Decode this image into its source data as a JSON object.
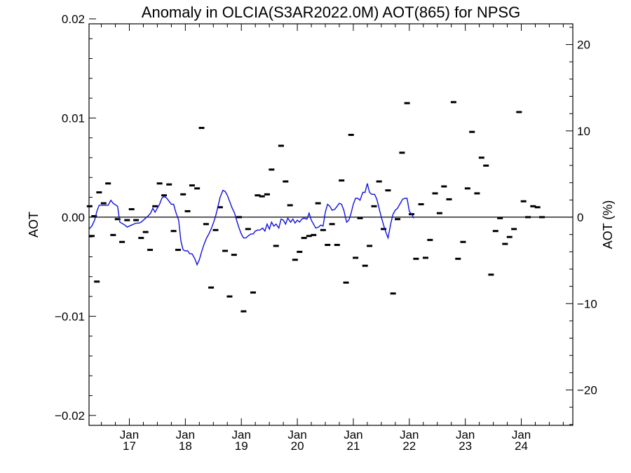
{
  "chart_data": {
    "type": "scatter",
    "title": "Anomaly in OLCIA(S3AR2022.0M) AOT(865) for NPSG",
    "ylabel": "AOT",
    "ylabel_right": "AOT (%)",
    "xlabel": "",
    "ylim": [
      -0.021,
      0.0195
    ],
    "ylim_right": [
      -24.1,
      22.4
    ],
    "xlim": [
      2016.28,
      2024.92
    ],
    "yticks": [
      {
        "value": 0.02,
        "label": "0.02"
      },
      {
        "value": 0.01,
        "label": "0.01"
      },
      {
        "value": 0.0,
        "label": "0.00"
      },
      {
        "value": -0.01,
        "label": "−0.01"
      },
      {
        "value": -0.02,
        "label": "−0.02"
      }
    ],
    "yticks_right": [
      {
        "value": 20,
        "label": "20"
      },
      {
        "value": 10,
        "label": "10"
      },
      {
        "value": 0,
        "label": "0"
      },
      {
        "value": -10,
        "label": "−10"
      },
      {
        "value": -20,
        "label": "−20"
      }
    ],
    "xticks": [
      {
        "value": 2017.0,
        "month": "Jan",
        "year": "17"
      },
      {
        "value": 2018.0,
        "month": "Jan",
        "year": "18"
      },
      {
        "value": 2019.0,
        "month": "Jan",
        "year": "19"
      },
      {
        "value": 2020.0,
        "month": "Jan",
        "year": "20"
      },
      {
        "value": 2021.0,
        "month": "Jan",
        "year": "21"
      },
      {
        "value": 2022.0,
        "month": "Jan",
        "year": "22"
      },
      {
        "value": 2023.0,
        "month": "Jan",
        "year": "23"
      },
      {
        "value": 2024.0,
        "month": "Jan",
        "year": "24"
      }
    ],
    "zero_line": 0,
    "grid": false,
    "series": [
      {
        "mark": "dash",
        "color": "#000000",
        "points": [
          [
            2016.29,
            0.0011
          ],
          [
            2016.33,
            -0.0019
          ],
          [
            2016.37,
            0.0001
          ],
          [
            2016.42,
            -0.0065
          ],
          [
            2016.46,
            0.0025
          ],
          [
            2016.54,
            0.0014
          ],
          [
            2016.62,
            0.0034
          ],
          [
            2016.71,
            -0.0018
          ],
          [
            2016.79,
            -0.0002
          ],
          [
            2016.87,
            -0.0025
          ],
          [
            2016.96,
            -0.0003
          ],
          [
            2017.04,
            0.0008
          ],
          [
            2017.12,
            -0.0003
          ],
          [
            2017.21,
            -0.0021
          ],
          [
            2017.29,
            -0.0015
          ],
          [
            2017.37,
            -0.0033
          ],
          [
            2017.46,
            0.0011
          ],
          [
            2017.54,
            0.0034
          ],
          [
            2017.62,
            0.0022
          ],
          [
            2017.71,
            0.0033
          ],
          [
            2017.79,
            -0.0014
          ],
          [
            2017.87,
            -0.0033
          ],
          [
            2017.96,
            0.0023
          ],
          [
            2018.04,
            0.0006
          ],
          [
            2018.12,
            0.0032
          ],
          [
            2018.21,
            0.0029
          ],
          [
            2018.29,
            0.009
          ],
          [
            2018.37,
            -0.0007
          ],
          [
            2018.46,
            -0.0071
          ],
          [
            2018.54,
            -0.0013
          ],
          [
            2018.62,
            0.001
          ],
          [
            2018.71,
            -0.0034
          ],
          [
            2018.79,
            -0.008
          ],
          [
            2018.87,
            -0.0038
          ],
          [
            2018.96,
            0.0
          ],
          [
            2019.04,
            -0.0095
          ],
          [
            2019.12,
            -0.0012
          ],
          [
            2019.21,
            -0.0076
          ],
          [
            2019.29,
            0.0022
          ],
          [
            2019.37,
            0.0021
          ],
          [
            2019.46,
            0.0023
          ],
          [
            2019.54,
            0.0048
          ],
          [
            2019.62,
            -0.0029
          ],
          [
            2019.71,
            0.0072
          ],
          [
            2019.79,
            0.0036
          ],
          [
            2019.87,
            0.0012
          ],
          [
            2019.96,
            -0.0043
          ],
          [
            2020.04,
            -0.0035
          ],
          [
            2020.12,
            -0.0021
          ],
          [
            2020.21,
            -0.0019
          ],
          [
            2020.29,
            -0.0018
          ],
          [
            2020.37,
            0.0014
          ],
          [
            2020.46,
            -0.0013
          ],
          [
            2020.54,
            -0.0028
          ],
          [
            2020.62,
            -0.0007
          ],
          [
            2020.71,
            -0.0028
          ],
          [
            2020.79,
            0.0037
          ],
          [
            2020.87,
            -0.0066
          ],
          [
            2020.96,
            0.0083
          ],
          [
            2021.04,
            -0.0041
          ],
          [
            2021.12,
            -0.0001
          ],
          [
            2021.21,
            -0.0049
          ],
          [
            2021.29,
            -0.0029
          ],
          [
            2021.37,
            0.0011
          ],
          [
            2021.46,
            0.0036
          ],
          [
            2021.54,
            -0.0012
          ],
          [
            2021.62,
            0.0027
          ],
          [
            2021.71,
            -0.0077
          ],
          [
            2021.79,
            -0.0002
          ],
          [
            2021.87,
            0.0065
          ],
          [
            2021.96,
            0.0115
          ],
          [
            2022.04,
            0.0003
          ],
          [
            2022.12,
            -0.0042
          ],
          [
            2022.21,
            0.0013
          ],
          [
            2022.29,
            -0.0041
          ],
          [
            2022.37,
            -0.0023
          ],
          [
            2022.46,
            0.0024
          ],
          [
            2022.54,
            0.0004
          ],
          [
            2022.62,
            0.0031
          ],
          [
            2022.71,
            0.0018
          ],
          [
            2022.79,
            0.0116
          ],
          [
            2022.87,
            -0.0042
          ],
          [
            2022.96,
            -0.0025
          ],
          [
            2023.04,
            0.0029
          ],
          [
            2023.12,
            0.0086
          ],
          [
            2023.21,
            0.0024
          ],
          [
            2023.29,
            0.006
          ],
          [
            2023.37,
            0.0052
          ],
          [
            2023.46,
            -0.0058
          ],
          [
            2023.54,
            -0.0014
          ],
          [
            2023.62,
            -0.0001
          ],
          [
            2023.71,
            -0.0027
          ],
          [
            2023.79,
            -0.002
          ],
          [
            2023.87,
            -0.0012
          ],
          [
            2023.96,
            0.0106
          ],
          [
            2024.04,
            0.0016
          ],
          [
            2024.12,
            0.0
          ],
          [
            2024.21,
            0.0011
          ],
          [
            2024.29,
            0.001
          ],
          [
            2024.37,
            0.0
          ]
        ]
      },
      {
        "mark": "line",
        "color": "#1010e0",
        "points": [
          [
            2016.28,
            -0.0012
          ],
          [
            2016.33,
            -0.0009
          ],
          [
            2016.38,
            -0.0003
          ],
          [
            2016.42,
            0.0006
          ],
          [
            2016.46,
            0.0012
          ],
          [
            2016.54,
            0.0012
          ],
          [
            2016.62,
            0.0012
          ],
          [
            2016.67,
            0.0017
          ],
          [
            2016.71,
            0.0014
          ],
          [
            2016.79,
            0.0011
          ],
          [
            2016.83,
            -0.0005
          ],
          [
            2016.92,
            -0.0008
          ],
          [
            2016.96,
            -0.001
          ],
          [
            2017.04,
            -0.0008
          ],
          [
            2017.12,
            -0.0006
          ],
          [
            2017.17,
            -0.0006
          ],
          [
            2017.21,
            -0.0005
          ],
          [
            2017.29,
            -0.0001
          ],
          [
            2017.33,
            0.0001
          ],
          [
            2017.38,
            0.0004
          ],
          [
            2017.42,
            0.0009
          ],
          [
            2017.46,
            0.0005
          ],
          [
            2017.5,
            0.0009
          ],
          [
            2017.54,
            0.0013
          ],
          [
            2017.58,
            0.0019
          ],
          [
            2017.62,
            0.0021
          ],
          [
            2017.67,
            0.0019
          ],
          [
            2017.71,
            0.0016
          ],
          [
            2017.75,
            0.0013
          ],
          [
            2017.79,
            0.0013
          ],
          [
            2017.83,
            0.0005
          ],
          [
            2017.88,
            -0.0003
          ],
          [
            2017.92,
            -0.0024
          ],
          [
            2017.96,
            -0.0033
          ],
          [
            2018.0,
            -0.0034
          ],
          [
            2018.04,
            -0.0034
          ],
          [
            2018.08,
            -0.0037
          ],
          [
            2018.12,
            -0.0037
          ],
          [
            2018.17,
            -0.0042
          ],
          [
            2018.21,
            -0.0048
          ],
          [
            2018.25,
            -0.0043
          ],
          [
            2018.29,
            -0.0035
          ],
          [
            2018.33,
            -0.0028
          ],
          [
            2018.38,
            -0.0021
          ],
          [
            2018.42,
            -0.0017
          ],
          [
            2018.46,
            -0.0012
          ],
          [
            2018.5,
            -0.0006
          ],
          [
            2018.54,
            0.0001
          ],
          [
            2018.58,
            0.001
          ],
          [
            2018.62,
            0.002
          ],
          [
            2018.67,
            0.0027
          ],
          [
            2018.71,
            0.0026
          ],
          [
            2018.75,
            0.0022
          ],
          [
            2018.79,
            0.0016
          ],
          [
            2018.83,
            0.001
          ],
          [
            2018.88,
            0.0004
          ],
          [
            2018.92,
            -0.0004
          ],
          [
            2018.96,
            -0.0011
          ],
          [
            2019.0,
            -0.0017
          ],
          [
            2019.04,
            -0.0021
          ],
          [
            2019.08,
            -0.0021
          ],
          [
            2019.12,
            -0.0019
          ],
          [
            2019.17,
            -0.0017
          ],
          [
            2019.21,
            -0.0017
          ],
          [
            2019.25,
            -0.0014
          ],
          [
            2019.29,
            -0.0013
          ],
          [
            2019.33,
            -0.0013
          ],
          [
            2019.38,
            -0.0011
          ],
          [
            2019.42,
            -0.0014
          ],
          [
            2019.46,
            -0.0007
          ],
          [
            2019.5,
            -0.0012
          ],
          [
            2019.54,
            -0.0005
          ],
          [
            2019.58,
            -0.0009
          ],
          [
            2019.62,
            -0.0007
          ],
          [
            2019.67,
            -0.0011
          ],
          [
            2019.71,
            -0.0002
          ],
          [
            2019.75,
            -0.0003
          ],
          [
            2019.79,
            -0.0007
          ],
          [
            2019.83,
            -0.0001
          ],
          [
            2019.88,
            -0.0005
          ],
          [
            2019.92,
            -0.0002
          ],
          [
            2019.96,
            -0.0006
          ],
          [
            2020.0,
            -0.0003
          ],
          [
            2020.04,
            -0.0005
          ],
          [
            2020.08,
            -0.0002
          ],
          [
            2020.12,
            -0.0001
          ],
          [
            2020.17,
            -0.0002
          ],
          [
            2020.21,
            0.0004
          ],
          [
            2020.25,
            -0.0003
          ],
          [
            2020.29,
            -0.0007
          ],
          [
            2020.33,
            -0.0011
          ],
          [
            2020.38,
            -0.001
          ],
          [
            2020.42,
            -0.0008
          ],
          [
            2020.46,
            -0.0009
          ],
          [
            2020.5,
            0.0005
          ],
          [
            2020.54,
            0.0013
          ],
          [
            2020.58,
            0.0011
          ],
          [
            2020.62,
            0.0007
          ],
          [
            2020.67,
            0.0008
          ],
          [
            2020.71,
            0.0011
          ],
          [
            2020.75,
            0.0014
          ],
          [
            2020.79,
            0.0013
          ],
          [
            2020.83,
            0.0007
          ],
          [
            2020.88,
            -0.0005
          ],
          [
            2020.92,
            -0.0003
          ],
          [
            2020.96,
            0.0004
          ],
          [
            2021.0,
            0.0013
          ],
          [
            2021.04,
            0.0019
          ],
          [
            2021.08,
            0.0019
          ],
          [
            2021.12,
            0.0017
          ],
          [
            2021.17,
            0.0025
          ],
          [
            2021.21,
            0.0025
          ],
          [
            2021.25,
            0.0034
          ],
          [
            2021.29,
            0.0025
          ],
          [
            2021.33,
            0.0023
          ],
          [
            2021.38,
            0.0023
          ],
          [
            2021.42,
            0.0018
          ],
          [
            2021.46,
            0.0009
          ],
          [
            2021.5,
            0.0
          ],
          [
            2021.54,
            -0.0008
          ],
          [
            2021.58,
            -0.0015
          ],
          [
            2021.62,
            -0.0021
          ],
          [
            2021.67,
            -0.0006
          ],
          [
            2021.71,
            0.0003
          ],
          [
            2021.75,
            0.0007
          ],
          [
            2021.79,
            0.0009
          ],
          [
            2021.83,
            0.0013
          ],
          [
            2021.88,
            0.0018
          ],
          [
            2021.92,
            0.0019
          ],
          [
            2021.96,
            0.0019
          ],
          [
            2022.0,
            0.0006
          ],
          [
            2022.04,
            0.0003
          ],
          [
            2022.08,
            -0.0001
          ]
        ]
      }
    ]
  }
}
